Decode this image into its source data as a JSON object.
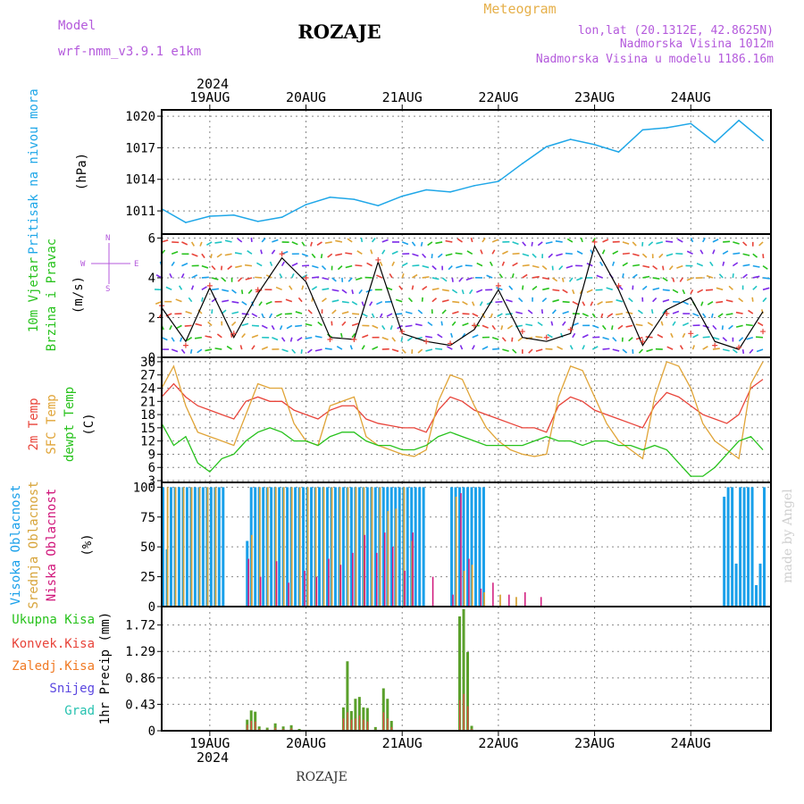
{
  "header": {
    "model_label": "Model",
    "model_name": "wrf-nmm_v3.9.1  e1km",
    "station": "ROZAJE",
    "product": "Meteogram",
    "coords": "lon,lat (20.1312E, 42.8625N)",
    "elevation": "Nadmorska Visina 1012m",
    "model_elevation": "Nadmorska Visina u modelu 1186.16m",
    "credit": "made by Angel",
    "footer_station": "ROZAJE"
  },
  "colors": {
    "pressure": "#1fa7e8",
    "temp2m": "#e8443a",
    "sfc": "#e0a437",
    "dewpt": "#27c21c",
    "high_cloud": "#1aa0ea",
    "mid_cloud": "#d7a43a",
    "low_cloud": "#d0157a",
    "total_precip": "#5aa02b",
    "convective": "#e84a4a",
    "snow": "#5a46e0",
    "wind_speed": "#000000",
    "gust": "#e8443a"
  },
  "chart_data": [
    {
      "type": "line",
      "panel": "pressure",
      "ylabel_1": "Pritisak na nivou mora",
      "ylabel_2": "(hPa)",
      "yticks": [
        1011,
        1014,
        1017,
        1020
      ],
      "ylim": [
        1008.8,
        1020.6
      ],
      "x_hours": [
        0,
        6,
        12,
        18,
        24,
        30,
        36,
        42,
        48,
        54,
        60,
        66,
        72,
        78,
        84,
        90,
        96,
        102,
        108,
        114,
        120,
        126,
        132,
        138,
        144,
        150
      ],
      "values": [
        1011.2,
        1009.9,
        1010.5,
        1010.6,
        1010.0,
        1010.4,
        1011.6,
        1012.3,
        1012.1,
        1011.5,
        1012.4,
        1013.0,
        1012.8,
        1013.4,
        1013.8,
        1015.5,
        1017.1,
        1017.8,
        1017.3,
        1016.6,
        1018.7,
        1018.9,
        1019.3,
        1017.5,
        1019.6,
        1017.7
      ]
    },
    {
      "type": "line",
      "panel": "wind",
      "ylabel_1": "10m Vjetar",
      "ylabel_2": "Brzina i Pravac",
      "ylabel_3": "(m/s)",
      "compass": {
        "n": "N",
        "s": "S",
        "e": "E",
        "w": "W"
      },
      "yticks": [
        0,
        2,
        4,
        6
      ],
      "ylim": [
        0,
        6.2
      ],
      "x_hours": [
        0,
        6,
        12,
        18,
        24,
        30,
        36,
        42,
        48,
        54,
        60,
        66,
        72,
        78,
        84,
        90,
        96,
        102,
        108,
        114,
        120,
        126,
        132,
        138,
        144,
        150
      ],
      "speed": [
        2.5,
        0.8,
        3.5,
        1.0,
        3.2,
        5.0,
        3.8,
        1.0,
        0.9,
        4.8,
        1.2,
        0.8,
        0.6,
        1.4,
        3.4,
        1.0,
        0.8,
        1.2,
        5.6,
        3.4,
        0.6,
        2.4,
        3.0,
        0.8,
        0.4,
        2.3
      ],
      "gust": [
        2.6,
        0.6,
        3.6,
        1.2,
        3.4,
        5.2,
        4.0,
        0.9,
        0.9,
        4.9,
        1.3,
        0.8,
        0.7,
        1.6,
        3.6,
        1.3,
        1.0,
        1.4,
        5.8,
        3.6,
        0.8,
        2.2,
        1.2,
        0.6,
        0.5,
        1.3
      ]
    },
    {
      "type": "line",
      "panel": "temperature",
      "ylabel_1": "2m Temp",
      "ylabel_2": "SFC Temp",
      "ylabel_3": "dewpt Temp",
      "ylabel_4": "(C)",
      "yticks": [
        3,
        6,
        9,
        12,
        15,
        18,
        21,
        24,
        27,
        30
      ],
      "ylim": [
        2.6,
        31.0
      ],
      "x_hours": [
        0,
        3,
        6,
        9,
        12,
        15,
        18,
        21,
        24,
        27,
        30,
        33,
        36,
        39,
        42,
        45,
        48,
        51,
        54,
        57,
        60,
        63,
        66,
        69,
        72,
        75,
        78,
        81,
        84,
        87,
        90,
        93,
        96,
        99,
        102,
        105,
        108,
        111,
        114,
        117,
        120,
        123,
        126,
        129,
        132,
        135,
        138,
        141,
        144,
        147,
        150
      ],
      "temp2m": [
        22,
        25,
        22,
        20,
        19,
        18,
        17,
        21,
        22,
        21,
        21,
        19,
        18,
        17,
        19,
        20,
        20,
        17,
        16,
        15.5,
        15,
        15,
        14,
        19,
        22,
        21,
        19,
        18,
        17,
        16,
        15,
        15,
        14,
        20,
        22,
        21,
        19,
        18,
        17,
        16,
        15,
        20,
        23,
        22,
        20,
        18,
        17,
        16,
        18,
        24,
        26
      ],
      "sfc": [
        24,
        29,
        20,
        14,
        13,
        12,
        11,
        18,
        25,
        24,
        24,
        16,
        12,
        11,
        20,
        21,
        22,
        13,
        11,
        10,
        9,
        8.5,
        10,
        21,
        27,
        26,
        20,
        15,
        12,
        10,
        9,
        8.5,
        9,
        22,
        29,
        28,
        22,
        16,
        12,
        10,
        8,
        22,
        30,
        29,
        24,
        16,
        12,
        10,
        8,
        25,
        30
      ],
      "dewpt": [
        16,
        11,
        13,
        7,
        5,
        8,
        9,
        12,
        14,
        15,
        14,
        12,
        12,
        11,
        13,
        14,
        14,
        12,
        11,
        11,
        10,
        10,
        11,
        13,
        14,
        13,
        12,
        11,
        11,
        11,
        11,
        12,
        13,
        12,
        12,
        11,
        12,
        12,
        11,
        11,
        10,
        11,
        10,
        7,
        4,
        4,
        6,
        9,
        12,
        13,
        10
      ]
    },
    {
      "type": "bar",
      "panel": "cloud",
      "ylabel_1": "Visoka Oblacnost",
      "ylabel_2": "Srednja Oblacnost",
      "ylabel_3": "Niska Oblacnost",
      "ylabel_4": "(%)",
      "yticks": [
        0,
        25,
        50,
        75,
        100
      ],
      "ylim": [
        0,
        104
      ],
      "high_x": [
        0,
        1,
        2,
        3,
        4,
        5,
        6,
        7,
        8,
        9,
        10,
        11,
        12,
        13,
        14,
        15,
        21,
        22,
        23,
        24,
        25,
        26,
        27,
        28,
        29,
        30,
        31,
        32,
        33,
        34,
        35,
        36,
        37,
        38,
        39,
        40,
        41,
        42,
        43,
        44,
        45,
        46,
        47,
        48,
        49,
        50,
        51,
        52,
        53,
        54,
        55,
        56,
        57,
        58,
        59,
        60,
        61,
        62,
        63,
        64,
        65,
        72,
        73,
        74,
        75,
        76,
        77,
        78,
        79,
        80,
        140,
        141,
        142,
        143,
        144,
        145,
        146,
        147,
        148,
        149,
        150
      ],
      "high_v": [
        100,
        48,
        100,
        100,
        100,
        100,
        100,
        100,
        100,
        100,
        100,
        100,
        100,
        100,
        100,
        100,
        55,
        100,
        100,
        100,
        100,
        100,
        100,
        100,
        100,
        100,
        100,
        100,
        100,
        100,
        100,
        100,
        100,
        100,
        100,
        100,
        100,
        100,
        100,
        100,
        100,
        100,
        100,
        100,
        100,
        100,
        100,
        100,
        100,
        100,
        100,
        100,
        100,
        100,
        100,
        100,
        100,
        100,
        100,
        100,
        100,
        100,
        100,
        100,
        100,
        100,
        100,
        100,
        100,
        100,
        92,
        100,
        100,
        36,
        100,
        100,
        100,
        100,
        18,
        36,
        100
      ],
      "mid_x": [
        1,
        3,
        5,
        7,
        9,
        11,
        13,
        22,
        24,
        26,
        28,
        30,
        32,
        34,
        36,
        38,
        40,
        42,
        44,
        46,
        48,
        50,
        52,
        54,
        56,
        58,
        60,
        62,
        73,
        75,
        77,
        80,
        84,
        88
      ],
      "mid_v": [
        100,
        100,
        100,
        100,
        100,
        100,
        100,
        60,
        100,
        100,
        100,
        100,
        100,
        100,
        100,
        100,
        100,
        100,
        100,
        100,
        100,
        100,
        100,
        100,
        80,
        82,
        100,
        55,
        92,
        30,
        35,
        12,
        10,
        8
      ],
      "low_x": [
        21,
        24,
        28,
        31,
        35,
        38,
        41,
        44,
        47,
        50,
        53,
        55,
        57,
        60,
        62,
        67,
        72,
        74,
        76,
        79,
        82,
        86,
        90,
        94
      ],
      "low_v": [
        40,
        25,
        38,
        20,
        30,
        25,
        40,
        35,
        45,
        60,
        45,
        62,
        50,
        30,
        62,
        25,
        10,
        95,
        40,
        15,
        20,
        10,
        12,
        8
      ]
    },
    {
      "type": "bar",
      "panel": "precip",
      "legend": [
        "Ukupna Kisa",
        "Konvek.Kisa",
        "Zaledj.Kisa",
        "Snijeg",
        "Grad"
      ],
      "ylabel": "1hr Precip (mm)",
      "yticks": [
        0,
        0.43,
        0.86,
        1.29,
        1.72
      ],
      "ylim": [
        0,
        2.02
      ],
      "x": [
        21,
        22,
        23,
        24,
        26,
        28,
        30,
        32,
        34,
        45,
        46,
        47,
        48,
        49,
        50,
        51,
        53,
        55,
        56,
        57,
        74,
        75,
        76,
        77
      ],
      "total": [
        0.18,
        0.33,
        0.31,
        0.07,
        0.05,
        0.12,
        0.07,
        0.09,
        0.03,
        0.38,
        1.13,
        0.32,
        0.52,
        0.55,
        0.38,
        0.37,
        0.06,
        0.69,
        0.52,
        0.16,
        1.86,
        1.98,
        1.28,
        0.08
      ],
      "convective": [
        0.1,
        0.16,
        0.15,
        0.03,
        0.02,
        0.05,
        0.03,
        0.04,
        0.01,
        0.2,
        0.3,
        0.18,
        0.2,
        0.25,
        0.18,
        0.15,
        0.02,
        0.3,
        0.2,
        0.06,
        0.5,
        0.6,
        0.4,
        0.03
      ]
    }
  ],
  "xaxis": {
    "year": "2024",
    "day_labels": [
      "19AUG",
      "20AUG",
      "21AUG",
      "22AUG",
      "23AUG",
      "24AUG"
    ],
    "day_hours": [
      12,
      36,
      60,
      84,
      108,
      132
    ],
    "range_hours": [
      0,
      152
    ]
  }
}
